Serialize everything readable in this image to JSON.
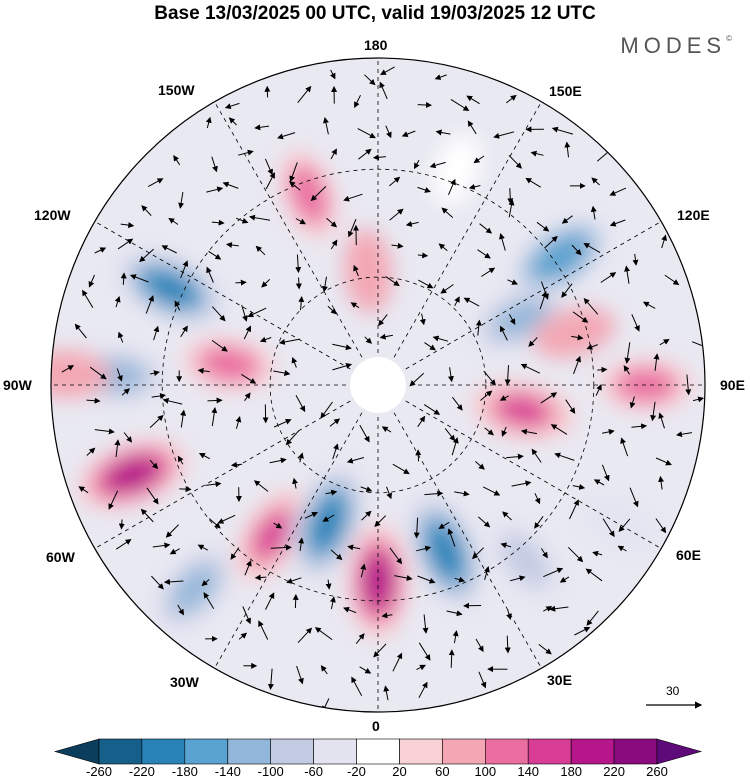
{
  "title": "Base 13/03/2025 00 UTC, valid 19/03/2025 12 UTC",
  "brand": "MODES",
  "brand_mark": "©",
  "longitude_labels": {
    "n180": "180",
    "e150": "150E",
    "e120": "120E",
    "e90": "90E",
    "e60": "60E",
    "e30": "30E",
    "s0": "0",
    "w30": "30W",
    "w60": "60W",
    "w90": "90W",
    "w120": "120W",
    "w150": "150W"
  },
  "vector_scale": {
    "value": "30"
  },
  "colorbar": {
    "ticks": [
      "-260",
      "-220",
      "-180",
      "-140",
      "-100",
      "-60",
      "-20",
      "20",
      "60",
      "100",
      "140",
      "180",
      "220",
      "260"
    ],
    "colors": [
      "#0b3d5c",
      "#155f8a",
      "#2a83b8",
      "#5aa2cf",
      "#93b7da",
      "#c3cbe2",
      "#e4e4f1",
      "#ffffff",
      "#f9d2d6",
      "#f3a7b4",
      "#ea6fa0",
      "#d93e97",
      "#b5168a",
      "#8a0b7e",
      "#5f0a79"
    ]
  },
  "anomalies": [
    {
      "lon": 200,
      "r": 0.62,
      "v": 100
    },
    {
      "lon": 185,
      "r": 0.35,
      "v": 60
    },
    {
      "lon": 245,
      "r": 0.7,
      "v": -200
    },
    {
      "lon": 262,
      "r": 0.46,
      "v": 100
    },
    {
      "lon": 268,
      "r": 0.8,
      "v": -140
    },
    {
      "lon": 268,
      "r": 0.95,
      "v": 60
    },
    {
      "lon": 290,
      "r": 0.8,
      "v": 180
    },
    {
      "lon": 318,
      "r": 0.84,
      "v": -140
    },
    {
      "lon": 325,
      "r": 0.56,
      "v": 140
    },
    {
      "lon": 340,
      "r": 0.45,
      "v": -220
    },
    {
      "lon": 0,
      "r": 0.6,
      "v": 180
    },
    {
      "lon": 22,
      "r": 0.55,
      "v": -220
    },
    {
      "lon": 40,
      "r": 0.7,
      "v": -100
    },
    {
      "lon": 80,
      "r": 0.45,
      "v": 140
    },
    {
      "lon": 90,
      "r": 0.82,
      "v": 100
    },
    {
      "lon": 125,
      "r": 0.68,
      "v": -180
    },
    {
      "lon": 115,
      "r": 0.48,
      "v": -140
    },
    {
      "lon": 105,
      "r": 0.62,
      "v": 60
    },
    {
      "lon": 160,
      "r": 0.7,
      "v": -20
    },
    {
      "lon": 60,
      "r": 0.85,
      "v": -60
    }
  ]
}
